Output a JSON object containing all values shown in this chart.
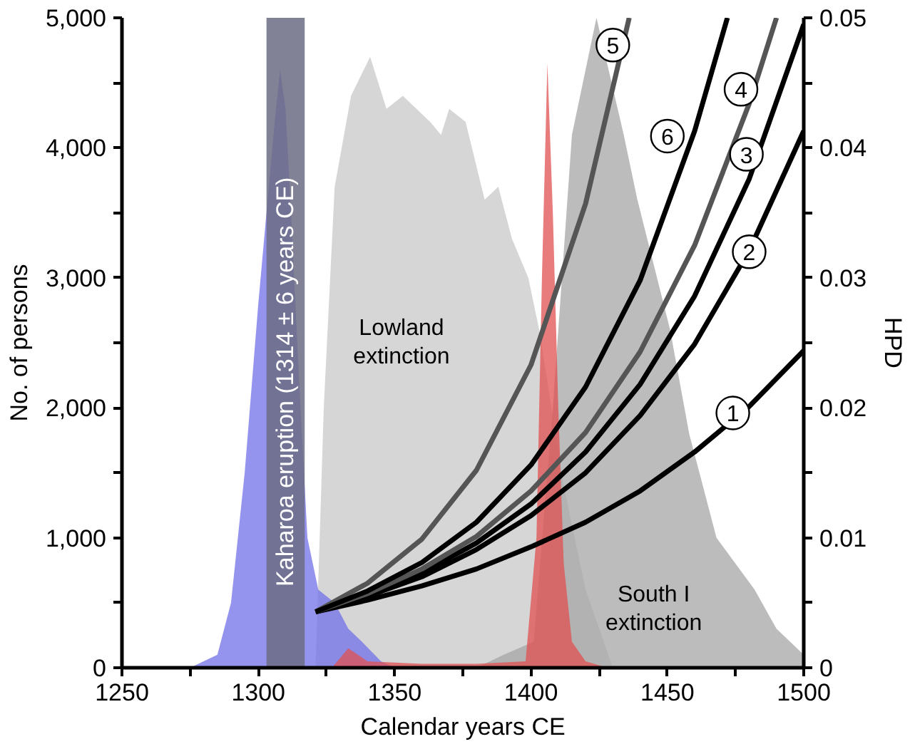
{
  "chart_data": {
    "type": "line",
    "xlabel": "Calendar years CE",
    "ylabel": "No. of persons",
    "y2label": "HPD",
    "xlim": [
      1250,
      1500
    ],
    "ylim": [
      0,
      5000
    ],
    "y2lim": [
      0,
      0.05
    ],
    "xticks": [
      1250,
      {
        "value": 1275,
        "label": null
      },
      1300,
      {
        "value": 1325,
        "label": null
      },
      1350,
      {
        "value": 1375,
        "label": null
      },
      1400,
      {
        "value": 1425,
        "label": null
      },
      1450,
      {
        "value": 1475,
        "label": null
      },
      1500
    ],
    "yticks": [
      0,
      {
        "value": 500,
        "label": null
      },
      {
        "value": 1000,
        "label": "1,000"
      },
      {
        "value": 1500,
        "label": null
      },
      {
        "value": 2000,
        "label": "2,000"
      },
      {
        "value": 2500,
        "label": null
      },
      {
        "value": 3000,
        "label": "3,000"
      },
      {
        "value": 3500,
        "label": null
      },
      {
        "value": 4000,
        "label": "4,000"
      },
      {
        "value": 4500,
        "label": null
      },
      {
        "value": 5000,
        "label": "5,000"
      }
    ],
    "y2ticks": [
      0,
      {
        "value": 0.005,
        "label": null
      },
      0.01,
      {
        "value": 0.015,
        "label": null
      },
      0.02,
      {
        "value": 0.025,
        "label": null
      },
      0.03,
      {
        "value": 0.035,
        "label": null
      },
      0.04,
      {
        "value": 0.045,
        "label": null
      },
      0.05
    ],
    "grid": false,
    "series": [
      {
        "type": "area",
        "axis": "y2",
        "color": "#c8c8c8",
        "x": [
          1321,
          1324,
          1328,
          1334,
          1341,
          1347,
          1353,
          1363,
          1367,
          1370,
          1376,
          1383,
          1388,
          1393,
          1399,
          1403,
          1412,
          1420,
          1430
        ],
        "values": [
          0,
          0.02,
          0.037,
          0.044,
          0.047,
          0.043,
          0.044,
          0.042,
          0.041,
          0.043,
          0.042,
          0.036,
          0.037,
          0.033,
          0.03,
          0.026,
          0.014,
          0.006,
          0
        ]
      },
      {
        "type": "area",
        "axis": "y2",
        "color": "#a6a6a6",
        "x": [
          1380,
          1390,
          1401,
          1408,
          1415,
          1424,
          1434,
          1439,
          1451,
          1458,
          1468,
          1482,
          1490,
          1495,
          1500
        ],
        "values": [
          0,
          0.001,
          0.002,
          0.02,
          0.041,
          0.05,
          0.041,
          0.036,
          0.026,
          0.018,
          0.01,
          0.006,
          0.003,
          0.002,
          0.001
        ]
      },
      {
        "type": "area",
        "axis": "y2",
        "color": "#7070e8",
        "x": [
          1275,
          1285,
          1290,
          1295,
          1300,
          1303,
          1306,
          1308,
          1310,
          1312,
          1315,
          1318,
          1322,
          1328,
          1333,
          1338,
          1345,
          1350
        ],
        "values": [
          0,
          0.001,
          0.005,
          0.015,
          0.028,
          0.035,
          0.042,
          0.046,
          0.043,
          0.035,
          0.022,
          0.01,
          0.006,
          0.005,
          0.003,
          0.002,
          0.0005,
          0
        ]
      },
      {
        "type": "area",
        "axis": "y2",
        "color": "#e05050",
        "x": [
          1327,
          1333,
          1340,
          1360,
          1380,
          1398,
          1402,
          1404,
          1406,
          1408,
          1410,
          1412,
          1415,
          1420,
          1428
        ],
        "values": [
          0,
          0.0015,
          0.0005,
          0.0003,
          0.0003,
          0.0005,
          0.01,
          0.03,
          0.0465,
          0.035,
          0.02,
          0.008,
          0.002,
          0.0005,
          0
        ]
      },
      {
        "color": "#000000",
        "x": [
          1321,
          1340,
          1360,
          1380,
          1400,
          1420,
          1440,
          1460,
          1480,
          1500
        ],
        "values": [
          430,
          520,
          630,
          760,
          930,
          1120,
          1360,
          1660,
          2010,
          2440
        ]
      },
      {
        "color": "#000000",
        "x": [
          1321,
          1340,
          1360,
          1380,
          1400,
          1420,
          1440,
          1460,
          1480,
          1500
        ],
        "values": [
          430,
          550,
          700,
          910,
          1170,
          1500,
          1940,
          2490,
          3210,
          4130
        ]
      },
      {
        "color": "#000000",
        "x": [
          1321,
          1340,
          1360,
          1380,
          1400,
          1420,
          1440,
          1460,
          1480,
          1500
        ],
        "values": [
          430,
          560,
          730,
          960,
          1260,
          1660,
          2180,
          2860,
          3760,
          4950
        ]
      },
      {
        "color": "#555555",
        "x": [
          1321,
          1340,
          1360,
          1380,
          1400,
          1420,
          1440,
          1460,
          1480,
          1490
        ],
        "values": [
          430,
          570,
          760,
          1010,
          1360,
          1810,
          2430,
          3250,
          4340,
          5000
        ]
      },
      {
        "color": "#555555",
        "x": [
          1321,
          1340,
          1360,
          1380,
          1400,
          1420,
          1436
        ],
        "values": [
          430,
          650,
          990,
          1520,
          2330,
          3570,
          5000
        ]
      },
      {
        "color": "#000000",
        "x": [
          1321,
          1340,
          1360,
          1380,
          1400,
          1420,
          1440,
          1460,
          1472
        ],
        "values": [
          430,
          590,
          810,
          1120,
          1560,
          2160,
          2980,
          4130,
          5000
        ]
      }
    ],
    "bands": [
      {
        "axis": "x",
        "from": 1303,
        "to": 1317,
        "label": "Kaharoa eruption (1314 ± 6 years CE)",
        "color": "#6c6c84"
      }
    ],
    "annotations": [
      {
        "text": "1",
        "x": 1474,
        "y": 1960
      },
      {
        "text": "2",
        "x": 1480,
        "y": 3200
      },
      {
        "text": "3",
        "x": 1479,
        "y": 3950
      },
      {
        "text": "4",
        "x": 1477,
        "y": 4450
      },
      {
        "text": "5",
        "x": 1430,
        "y": 4790
      },
      {
        "text": "6",
        "x": 1450,
        "y": 4090
      },
      "Lowland\nextinction",
      "South I\nextinction"
    ]
  }
}
